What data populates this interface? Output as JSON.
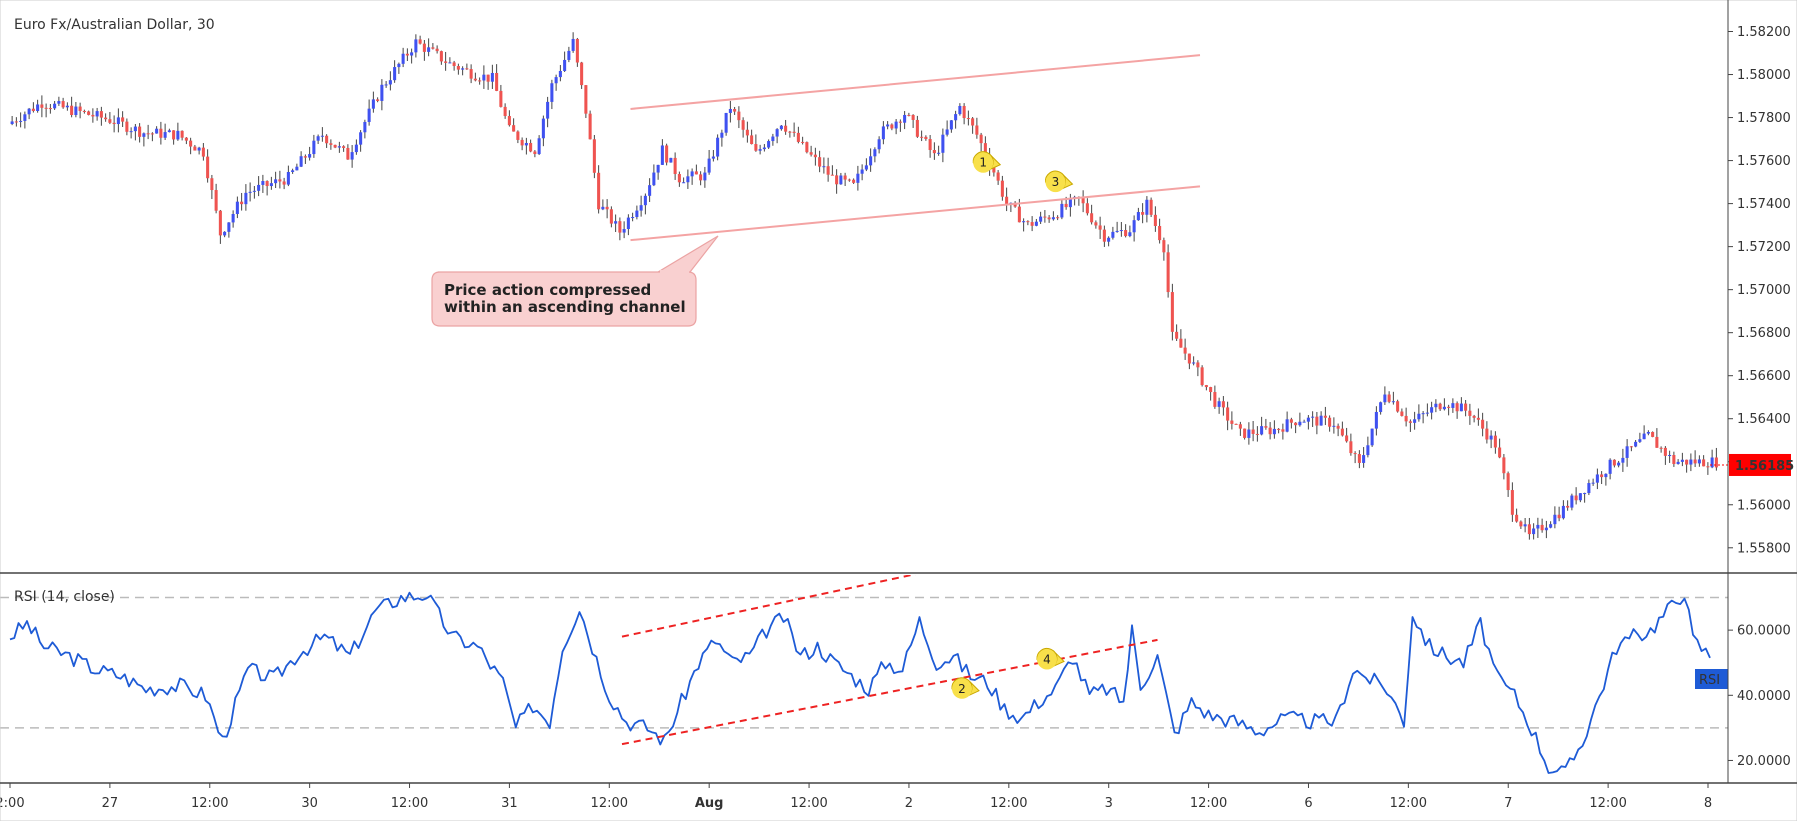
{
  "chart_data": [
    {
      "type": "candlestick",
      "title": "Euro Fx/Australian Dollar, 30",
      "ylim": [
        1.5572,
        1.583
      ],
      "y_ticks": [
        "1.58200",
        "1.58000",
        "1.57800",
        "1.57600",
        "1.57400",
        "1.57200",
        "1.57000",
        "1.56800",
        "1.56600",
        "1.56400",
        "1.56200",
        "1.56000",
        "1.55800"
      ],
      "last_price": "1.56185",
      "colors": {
        "up": "#3f51f0",
        "down": "#ef5350",
        "wick": "#444444",
        "channel": "#f4a3a3",
        "last_price_bg": "#ff0000"
      },
      "x_ticks": [
        "2:00",
        "27",
        "12:00",
        "30",
        "12:00",
        "31",
        "12:00",
        "Aug",
        "12:00",
        "2",
        "12:00",
        "3",
        "12:00",
        "6",
        "12:00",
        "7",
        "12:00",
        "8"
      ],
      "price_path": [
        {
          "bar": 0,
          "price": 1.5777
        },
        {
          "bar": 8,
          "price": 1.5787
        },
        {
          "bar": 16,
          "price": 1.5783
        },
        {
          "bar": 24,
          "price": 1.5779
        },
        {
          "bar": 32,
          "price": 1.5773
        },
        {
          "bar": 40,
          "price": 1.5772
        },
        {
          "bar": 46,
          "price": 1.5764
        },
        {
          "bar": 50,
          "price": 1.5726
        },
        {
          "bar": 56,
          "price": 1.5745
        },
        {
          "bar": 66,
          "price": 1.5752
        },
        {
          "bar": 74,
          "price": 1.5772
        },
        {
          "bar": 80,
          "price": 1.5762
        },
        {
          "bar": 88,
          "price": 1.5794
        },
        {
          "bar": 96,
          "price": 1.5815
        },
        {
          "bar": 104,
          "price": 1.5805
        },
        {
          "bar": 110,
          "price": 1.58
        },
        {
          "bar": 114,
          "price": 1.5798
        },
        {
          "bar": 118,
          "price": 1.5774
        },
        {
          "bar": 124,
          "price": 1.5765
        },
        {
          "bar": 128,
          "price": 1.5795
        },
        {
          "bar": 133,
          "price": 1.5815
        },
        {
          "bar": 136,
          "price": 1.5783
        },
        {
          "bar": 139,
          "price": 1.574
        },
        {
          "bar": 144,
          "price": 1.5727
        },
        {
          "bar": 150,
          "price": 1.5745
        },
        {
          "bar": 154,
          "price": 1.5765
        },
        {
          "bar": 158,
          "price": 1.5752
        },
        {
          "bar": 164,
          "price": 1.5753
        },
        {
          "bar": 170,
          "price": 1.5785
        },
        {
          "bar": 176,
          "price": 1.5763
        },
        {
          "bar": 182,
          "price": 1.5778
        },
        {
          "bar": 188,
          "price": 1.5764
        },
        {
          "bar": 194,
          "price": 1.5752
        },
        {
          "bar": 199,
          "price": 1.5748
        },
        {
          "bar": 205,
          "price": 1.5772
        },
        {
          "bar": 211,
          "price": 1.5782
        },
        {
          "bar": 218,
          "price": 1.5762
        },
        {
          "bar": 224,
          "price": 1.5785
        },
        {
          "bar": 228,
          "price": 1.5772
        },
        {
          "bar": 232,
          "price": 1.5755
        },
        {
          "bar": 235,
          "price": 1.574
        },
        {
          "bar": 240,
          "price": 1.573
        },
        {
          "bar": 246,
          "price": 1.5735
        },
        {
          "bar": 252,
          "price": 1.5742
        },
        {
          "bar": 258,
          "price": 1.5725
        },
        {
          "bar": 264,
          "price": 1.5728
        },
        {
          "bar": 268,
          "price": 1.574
        },
        {
          "bar": 272,
          "price": 1.572
        },
        {
          "bar": 274,
          "price": 1.5678
        },
        {
          "bar": 278,
          "price": 1.5668
        },
        {
          "bar": 284,
          "price": 1.5648
        },
        {
          "bar": 290,
          "price": 1.5633
        },
        {
          "bar": 298,
          "price": 1.5635
        },
        {
          "bar": 304,
          "price": 1.564
        },
        {
          "bar": 312,
          "price": 1.5638
        },
        {
          "bar": 318,
          "price": 1.5618
        },
        {
          "bar": 324,
          "price": 1.5653
        },
        {
          "bar": 330,
          "price": 1.5638
        },
        {
          "bar": 338,
          "price": 1.5648
        },
        {
          "bar": 344,
          "price": 1.5643
        },
        {
          "bar": 350,
          "price": 1.5628
        },
        {
          "bar": 354,
          "price": 1.5598
        },
        {
          "bar": 358,
          "price": 1.5585
        },
        {
          "bar": 366,
          "price": 1.5598
        },
        {
          "bar": 372,
          "price": 1.561
        },
        {
          "bar": 378,
          "price": 1.562
        },
        {
          "bar": 386,
          "price": 1.5632
        },
        {
          "bar": 392,
          "price": 1.562
        }
      ],
      "channel_lines": [
        {
          "points": [
            {
              "bar": 146,
              "price": 1.5784
            },
            {
              "bar": 280,
              "price": 1.5809
            }
          ]
        },
        {
          "points": [
            {
              "bar": 146,
              "price": 1.5723
            },
            {
              "bar": 280,
              "price": 1.5748
            }
          ]
        }
      ],
      "annotation": {
        "text_line1": "Price action compressed",
        "text_line2": "within an ascending channel"
      },
      "markers": [
        {
          "label": "1",
          "bar": 229,
          "price": 1.5759
        },
        {
          "label": "3",
          "bar": 246,
          "price": 1.575
        }
      ]
    },
    {
      "type": "line",
      "title": "RSI (14, close)",
      "ylim": [
        14,
        76
      ],
      "y_ticks": [
        "60.0000",
        "40.0000",
        "20.0000"
      ],
      "tick_values": [
        60,
        40,
        20
      ],
      "levels": [
        70,
        30
      ],
      "legend_label": "RSI",
      "colors": {
        "line": "#1e5bd6",
        "level": "#bbbbbb",
        "trend": "#ee2222",
        "label_bg": "#1e5bd6"
      },
      "path": [
        {
          "bar": 0,
          "value": 58
        },
        {
          "bar": 4,
          "value": 62
        },
        {
          "bar": 8,
          "value": 55
        },
        {
          "bar": 14,
          "value": 52
        },
        {
          "bar": 20,
          "value": 48
        },
        {
          "bar": 26,
          "value": 46
        },
        {
          "bar": 32,
          "value": 42
        },
        {
          "bar": 40,
          "value": 43
        },
        {
          "bar": 46,
          "value": 40
        },
        {
          "bar": 50,
          "value": 26
        },
        {
          "bar": 56,
          "value": 48
        },
        {
          "bar": 62,
          "value": 45
        },
        {
          "bar": 68,
          "value": 53
        },
        {
          "bar": 74,
          "value": 58
        },
        {
          "bar": 80,
          "value": 52
        },
        {
          "bar": 86,
          "value": 66
        },
        {
          "bar": 92,
          "value": 70
        },
        {
          "bar": 98,
          "value": 71
        },
        {
          "bar": 104,
          "value": 58
        },
        {
          "bar": 110,
          "value": 55
        },
        {
          "bar": 116,
          "value": 44
        },
        {
          "bar": 119,
          "value": 30
        },
        {
          "bar": 123,
          "value": 37
        },
        {
          "bar": 127,
          "value": 32
        },
        {
          "bar": 130,
          "value": 55
        },
        {
          "bar": 134,
          "value": 67
        },
        {
          "bar": 137,
          "value": 55
        },
        {
          "bar": 141,
          "value": 40
        },
        {
          "bar": 145,
          "value": 32
        },
        {
          "bar": 150,
          "value": 30
        },
        {
          "bar": 154,
          "value": 26
        },
        {
          "bar": 158,
          "value": 38
        },
        {
          "bar": 162,
          "value": 50
        },
        {
          "bar": 166,
          "value": 57
        },
        {
          "bar": 170,
          "value": 50
        },
        {
          "bar": 174,
          "value": 52
        },
        {
          "bar": 178,
          "value": 60
        },
        {
          "bar": 182,
          "value": 64
        },
        {
          "bar": 186,
          "value": 52
        },
        {
          "bar": 190,
          "value": 55
        },
        {
          "bar": 194,
          "value": 50
        },
        {
          "bar": 198,
          "value": 46
        },
        {
          "bar": 202,
          "value": 42
        },
        {
          "bar": 206,
          "value": 50
        },
        {
          "bar": 210,
          "value": 48
        },
        {
          "bar": 214,
          "value": 63
        },
        {
          "bar": 218,
          "value": 50
        },
        {
          "bar": 222,
          "value": 52
        },
        {
          "bar": 226,
          "value": 46
        },
        {
          "bar": 230,
          "value": 44
        },
        {
          "bar": 234,
          "value": 36
        },
        {
          "bar": 238,
          "value": 33
        },
        {
          "bar": 242,
          "value": 38
        },
        {
          "bar": 246,
          "value": 42
        },
        {
          "bar": 250,
          "value": 52
        },
        {
          "bar": 254,
          "value": 40
        },
        {
          "bar": 258,
          "value": 42
        },
        {
          "bar": 262,
          "value": 38
        },
        {
          "bar": 264,
          "value": 60
        },
        {
          "bar": 266,
          "value": 43
        },
        {
          "bar": 270,
          "value": 52
        },
        {
          "bar": 274,
          "value": 28
        },
        {
          "bar": 278,
          "value": 38
        },
        {
          "bar": 282,
          "value": 34
        },
        {
          "bar": 288,
          "value": 32
        },
        {
          "bar": 294,
          "value": 29
        },
        {
          "bar": 300,
          "value": 33
        },
        {
          "bar": 306,
          "value": 32
        },
        {
          "bar": 312,
          "value": 32
        },
        {
          "bar": 316,
          "value": 48
        },
        {
          "bar": 320,
          "value": 45
        },
        {
          "bar": 324,
          "value": 42
        },
        {
          "bar": 328,
          "value": 32
        },
        {
          "bar": 330,
          "value": 65
        },
        {
          "bar": 334,
          "value": 55
        },
        {
          "bar": 338,
          "value": 52
        },
        {
          "bar": 342,
          "value": 50
        },
        {
          "bar": 346,
          "value": 62
        },
        {
          "bar": 350,
          "value": 45
        },
        {
          "bar": 354,
          "value": 40
        },
        {
          "bar": 358,
          "value": 30
        },
        {
          "bar": 362,
          "value": 18
        },
        {
          "bar": 366,
          "value": 16
        },
        {
          "bar": 370,
          "value": 26
        },
        {
          "bar": 374,
          "value": 40
        },
        {
          "bar": 378,
          "value": 55
        },
        {
          "bar": 382,
          "value": 58
        },
        {
          "bar": 386,
          "value": 60
        },
        {
          "bar": 390,
          "value": 66
        },
        {
          "bar": 394,
          "value": 72
        },
        {
          "bar": 396,
          "value": 57
        },
        {
          "bar": 400,
          "value": 52
        }
      ],
      "trend_lines": [
        {
          "points": [
            {
              "bar": 144,
              "value": 58
            },
            {
              "bar": 216,
              "value": 78
            }
          ]
        },
        {
          "points": [
            {
              "bar": 144,
              "value": 25
            },
            {
              "bar": 270,
              "value": 57
            }
          ]
        }
      ],
      "markers": [
        {
          "label": "2",
          "bar": 224,
          "value": 42
        },
        {
          "label": "4",
          "bar": 244,
          "value": 51
        }
      ]
    }
  ]
}
